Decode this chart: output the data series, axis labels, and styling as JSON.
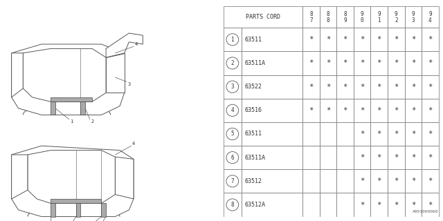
{
  "rows": [
    {
      "num": "1",
      "part": "63511",
      "stars": [
        1,
        1,
        1,
        1,
        1,
        1,
        1,
        1
      ]
    },
    {
      "num": "2",
      "part": "63511A",
      "stars": [
        1,
        1,
        1,
        1,
        1,
        1,
        1,
        1
      ]
    },
    {
      "num": "3",
      "part": "63522",
      "stars": [
        1,
        1,
        1,
        1,
        1,
        1,
        1,
        1
      ]
    },
    {
      "num": "4",
      "part": "63516",
      "stars": [
        1,
        1,
        1,
        1,
        1,
        1,
        1,
        1
      ]
    },
    {
      "num": "5",
      "part": "63511",
      "stars": [
        0,
        0,
        0,
        1,
        1,
        1,
        1,
        1
      ]
    },
    {
      "num": "6",
      "part": "63511A",
      "stars": [
        0,
        0,
        0,
        1,
        1,
        1,
        1,
        1
      ]
    },
    {
      "num": "7",
      "part": "63512",
      "stars": [
        0,
        0,
        0,
        1,
        1,
        1,
        1,
        1
      ]
    },
    {
      "num": "8",
      "part": "63512A",
      "stars": [
        0,
        0,
        0,
        1,
        1,
        1,
        1,
        1
      ]
    }
  ],
  "years": [
    "8\n7",
    "8\n8",
    "8\n9",
    "9\n0",
    "9\n1",
    "9\n2",
    "9\n3",
    "9\n4"
  ],
  "footer": "A901000060",
  "edge_color": "#555555",
  "text_color": "#333333"
}
